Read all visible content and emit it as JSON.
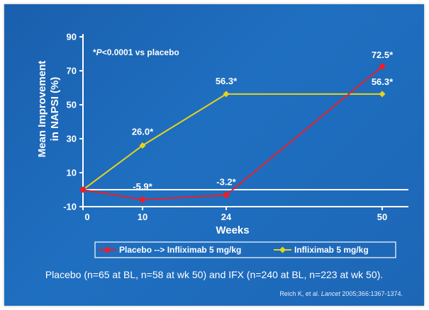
{
  "chart_data": {
    "type": "line",
    "x": [
      0,
      10,
      24,
      50
    ],
    "x_tick_labels": [
      "0",
      "10",
      "24",
      "50"
    ],
    "xlabel": "Weeks",
    "ylabel_lines": [
      "Mean Improvement",
      "in NAPSI (%)"
    ],
    "ylim": [
      -10,
      90
    ],
    "y_ticks": [
      -10,
      10,
      30,
      50,
      70,
      90
    ],
    "annotation": {
      "prefix": "*",
      "italic": "P",
      "rest": "<0.0001 vs placebo"
    },
    "series": [
      {
        "name": "Placebo --> Infliximab 5 mg/kg",
        "values": [
          0,
          -5.9,
          -3.2,
          72.5
        ],
        "labels": [
          "",
          "-5.9*",
          "-3.2*",
          "72.5*"
        ],
        "color": "#e8202a"
      },
      {
        "name": "Infliximab 5 mg/kg",
        "values": [
          0,
          26.0,
          56.3,
          56.3
        ],
        "labels": [
          "",
          "26.0*",
          "56.3*",
          "56.3*"
        ],
        "color": "#e7d21c"
      }
    ]
  },
  "footnote": "Placebo (n=65 at BL, n=58 at wk 50) and IFX (n=240 at BL, n=223 at wk 50).",
  "citation": {
    "authors": "Reich K, et al.",
    "journal": "Lancet",
    "details": "2005;366:1367-1374."
  }
}
